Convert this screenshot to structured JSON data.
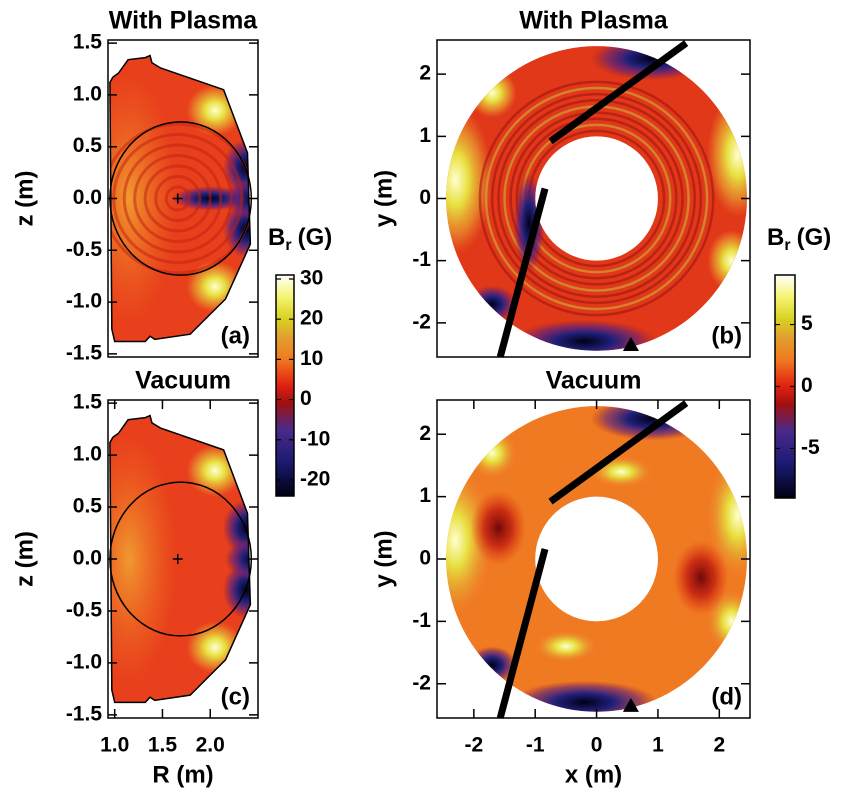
{
  "chart_data": [
    {
      "type": "contour",
      "title": "With Plasma",
      "ylabel": "z (m)",
      "panel_label": "(a)",
      "xlim": [
        0.93,
        2.5
      ],
      "ylim": [
        -1.53,
        1.53
      ],
      "yticks": [
        1.5,
        {
          "value": 1,
          "label": "1.0"
        },
        0.5,
        {
          "value": 0,
          "label": "0.0"
        },
        -0.5,
        {
          "value": -1,
          "label": "-1.0"
        },
        -1.5
      ]
    },
    {
      "type": "contour",
      "title": "With Plasma",
      "ylabel": "y (m)",
      "panel_label": "(b)",
      "xlim": [
        -2.6,
        2.5
      ],
      "ylim": [
        -2.55,
        2.55
      ],
      "yticks": [
        2,
        1,
        0,
        -1,
        -2
      ]
    },
    {
      "type": "contour",
      "title": "Vacuum",
      "xlabel": "R (m)",
      "ylabel": "z (m)",
      "panel_label": "(c)",
      "xlim": [
        0.93,
        2.5
      ],
      "ylim": [
        -1.53,
        1.53
      ],
      "xticks": [
        {
          "value": 1,
          "label": "1.0"
        },
        1.5,
        {
          "value": 2,
          "label": "2.0"
        }
      ],
      "yticks": [
        1.5,
        {
          "value": 1,
          "label": "1.0"
        },
        0.5,
        {
          "value": 0,
          "label": "0.0"
        },
        -0.5,
        {
          "value": -1,
          "label": "-1.0"
        },
        -1.5
      ]
    },
    {
      "type": "contour",
      "title": "Vacuum",
      "xlabel": "x (m)",
      "ylabel": "y (m)",
      "panel_label": "(d)",
      "xlim": [
        -2.6,
        2.5
      ],
      "ylim": [
        -2.55,
        2.55
      ],
      "xticks": [
        -2,
        -1,
        0,
        1,
        2
      ],
      "yticks": [
        2,
        1,
        0,
        -1,
        -2
      ]
    },
    {
      "type": "colorbar",
      "label": [
        "B",
        "r",
        "(G)"
      ],
      "ylim": [
        -24,
        31
      ],
      "yticks": [
        30,
        20,
        10,
        0,
        -10,
        -20
      ]
    },
    {
      "type": "colorbar",
      "label": [
        "B",
        "r",
        "(G)"
      ],
      "ylim": [
        -9,
        9
      ],
      "yticks": [
        5,
        0,
        -5
      ]
    }
  ]
}
